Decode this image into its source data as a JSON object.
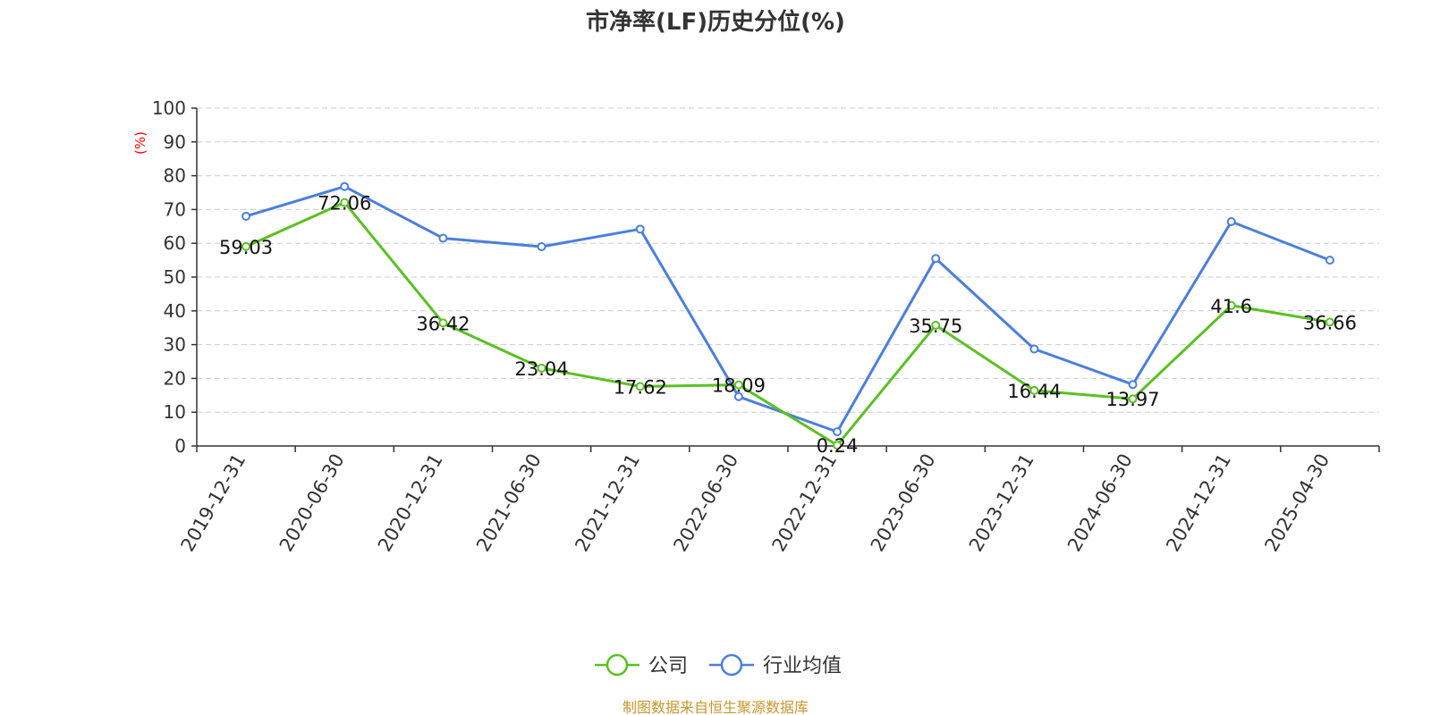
{
  "chart_data": {
    "type": "line",
    "title": "市净率(LF)历史分位(%)",
    "ylabel": "(%)",
    "ylim": [
      0,
      100
    ],
    "yticks": [
      0,
      10,
      20,
      30,
      40,
      50,
      60,
      70,
      80,
      90,
      100
    ],
    "grid": true,
    "legend_position": "bottom",
    "categories": [
      "2019-12-31",
      "2020-06-30",
      "2020-12-31",
      "2021-06-30",
      "2021-12-31",
      "2022-06-30",
      "2022-12-31",
      "2023-06-30",
      "2023-12-31",
      "2024-06-30",
      "2024-12-31",
      "2025-04-30"
    ],
    "series": [
      {
        "name": "公司",
        "color": "#5ac122",
        "values": [
          59.03,
          72.06,
          36.42,
          23.04,
          17.62,
          18.09,
          0.24,
          35.75,
          16.44,
          13.97,
          41.6,
          36.66
        ],
        "show_labels": true
      },
      {
        "name": "行业均值",
        "color": "#4a7fdc",
        "values": [
          68.0,
          76.8,
          61.5,
          59.0,
          64.2,
          14.6,
          4.2,
          55.5,
          28.7,
          18.2,
          66.4,
          55.0
        ],
        "show_labels": false
      }
    ],
    "ylabel_color": "#ff0000"
  },
  "source": {
    "text": "制图数据来自恒生聚源数据库",
    "color": "#c8962c"
  }
}
